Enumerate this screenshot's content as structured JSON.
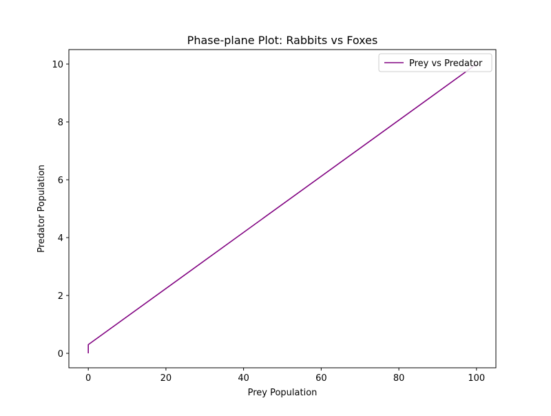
{
  "chart_data": {
    "type": "line",
    "title": "Phase-plane Plot: Rabbits vs Foxes",
    "xlabel": "Prey Population",
    "ylabel": "Predator Population",
    "xlim": [
      -5,
      105
    ],
    "ylim": [
      -0.5,
      10.5
    ],
    "x_ticks": [
      0,
      20,
      40,
      60,
      80,
      100
    ],
    "y_ticks": [
      0,
      2,
      4,
      6,
      8,
      10
    ],
    "grid": false,
    "legend_position": "top-right",
    "series": [
      {
        "name": "Prey vs Predator",
        "color": "#800080",
        "x": [
          0,
          0,
          100
        ],
        "y": [
          0,
          0.3,
          10
        ]
      }
    ]
  }
}
